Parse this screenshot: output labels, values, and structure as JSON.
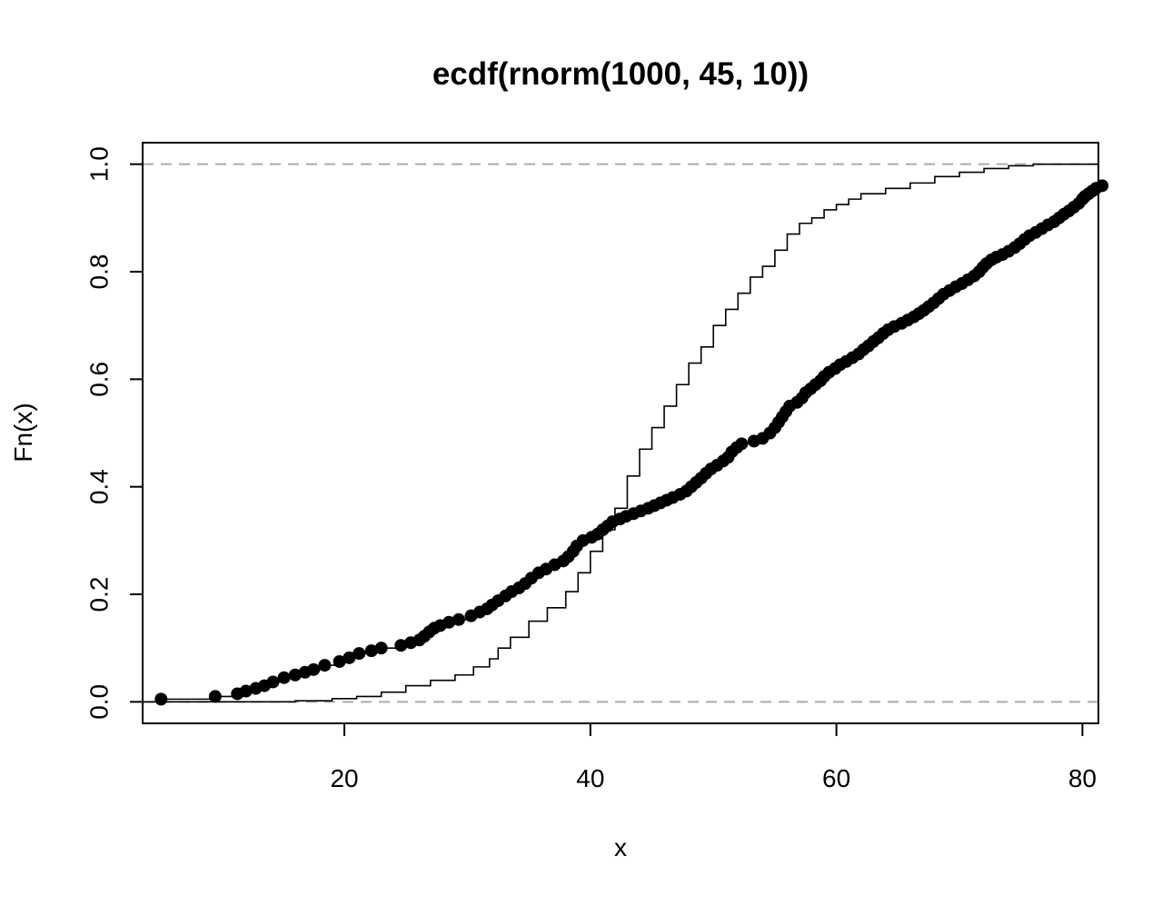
{
  "chart_data": {
    "type": "line",
    "title": "ecdf(rnorm(1000, 45, 10))",
    "xlabel": "x",
    "ylabel": "Fn(x)",
    "xlim": [
      3.6,
      81.3
    ],
    "ylim": [
      -0.04,
      1.04
    ],
    "x_ticks": [
      {
        "value": 20,
        "label": "20"
      },
      {
        "value": 40,
        "label": "40"
      },
      {
        "value": 60,
        "label": "60"
      },
      {
        "value": 80,
        "label": "80"
      }
    ],
    "y_ticks": [
      {
        "value": 0.0,
        "label": "0.0"
      },
      {
        "value": 0.2,
        "label": "0.2"
      },
      {
        "value": 0.4,
        "label": "0.4"
      },
      {
        "value": 0.6,
        "label": "0.6"
      },
      {
        "value": 0.8,
        "label": "0.8"
      },
      {
        "value": 1.0,
        "label": "1.0"
      }
    ],
    "reference_lines": [
      {
        "y": 0.0,
        "style": "dashed",
        "color": "#aaaaaa"
      },
      {
        "y": 1.0,
        "style": "dashed",
        "color": "#aaaaaa"
      }
    ],
    "series": [
      {
        "style": "step-with-points",
        "color": "#000000",
        "points": [
          [
            5.1,
            0.005
          ],
          [
            9.5,
            0.01
          ],
          [
            11.3,
            0.015
          ],
          [
            12.0,
            0.02
          ],
          [
            12.8,
            0.025
          ],
          [
            13.5,
            0.03
          ],
          [
            14.2,
            0.037
          ],
          [
            15.1,
            0.045
          ],
          [
            16.0,
            0.05
          ],
          [
            16.8,
            0.055
          ],
          [
            17.5,
            0.06
          ],
          [
            18.4,
            0.068
          ],
          [
            19.6,
            0.075
          ],
          [
            20.4,
            0.082
          ],
          [
            21.2,
            0.09
          ],
          [
            22.2,
            0.095
          ],
          [
            23.0,
            0.1
          ],
          [
            24.6,
            0.105
          ],
          [
            25.4,
            0.11
          ],
          [
            26.1,
            0.115
          ],
          [
            26.5,
            0.122
          ],
          [
            26.9,
            0.13
          ],
          [
            27.3,
            0.137
          ],
          [
            27.8,
            0.142
          ],
          [
            28.5,
            0.148
          ],
          [
            29.3,
            0.153
          ],
          [
            30.3,
            0.16
          ],
          [
            31.0,
            0.167
          ],
          [
            31.6,
            0.173
          ],
          [
            32.0,
            0.18
          ],
          [
            32.5,
            0.188
          ],
          [
            33.1,
            0.197
          ],
          [
            33.6,
            0.205
          ],
          [
            34.2,
            0.212
          ],
          [
            34.7,
            0.22
          ],
          [
            35.2,
            0.23
          ],
          [
            35.8,
            0.24
          ],
          [
            36.4,
            0.247
          ],
          [
            37.1,
            0.255
          ],
          [
            37.8,
            0.262
          ],
          [
            38.2,
            0.27
          ],
          [
            38.6,
            0.28
          ],
          [
            38.9,
            0.29
          ],
          [
            39.4,
            0.3
          ],
          [
            40.1,
            0.306
          ],
          [
            40.6,
            0.312
          ],
          [
            41.0,
            0.32
          ],
          [
            41.4,
            0.327
          ],
          [
            41.8,
            0.335
          ],
          [
            42.4,
            0.34
          ],
          [
            42.9,
            0.345
          ],
          [
            43.5,
            0.35
          ],
          [
            44.1,
            0.355
          ],
          [
            44.7,
            0.36
          ],
          [
            45.2,
            0.365
          ],
          [
            45.7,
            0.37
          ],
          [
            46.2,
            0.375
          ],
          [
            46.7,
            0.38
          ],
          [
            47.3,
            0.386
          ],
          [
            47.8,
            0.392
          ],
          [
            48.2,
            0.4
          ],
          [
            48.6,
            0.408
          ],
          [
            49.0,
            0.416
          ],
          [
            49.4,
            0.425
          ],
          [
            49.8,
            0.433
          ],
          [
            50.3,
            0.44
          ],
          [
            50.8,
            0.448
          ],
          [
            51.2,
            0.455
          ],
          [
            51.5,
            0.465
          ],
          [
            51.9,
            0.473
          ],
          [
            52.3,
            0.48
          ],
          [
            53.3,
            0.485
          ],
          [
            54.0,
            0.49
          ],
          [
            54.6,
            0.5
          ],
          [
            55.0,
            0.51
          ],
          [
            55.3,
            0.52
          ],
          [
            55.6,
            0.53
          ],
          [
            55.9,
            0.54
          ],
          [
            56.2,
            0.55
          ],
          [
            56.8,
            0.557
          ],
          [
            57.2,
            0.565
          ],
          [
            57.5,
            0.575
          ],
          [
            57.9,
            0.582
          ],
          [
            58.3,
            0.59
          ],
          [
            58.7,
            0.597
          ],
          [
            59.0,
            0.605
          ],
          [
            59.4,
            0.613
          ],
          [
            59.9,
            0.62
          ],
          [
            60.3,
            0.627
          ],
          [
            60.8,
            0.633
          ],
          [
            61.3,
            0.64
          ],
          [
            61.8,
            0.647
          ],
          [
            62.2,
            0.655
          ],
          [
            62.6,
            0.662
          ],
          [
            63.0,
            0.67
          ],
          [
            63.4,
            0.677
          ],
          [
            63.8,
            0.685
          ],
          [
            64.2,
            0.692
          ],
          [
            64.7,
            0.698
          ],
          [
            65.3,
            0.704
          ],
          [
            65.8,
            0.71
          ],
          [
            66.3,
            0.716
          ],
          [
            66.7,
            0.722
          ],
          [
            67.1,
            0.728
          ],
          [
            67.5,
            0.735
          ],
          [
            67.9,
            0.742
          ],
          [
            68.3,
            0.75
          ],
          [
            68.7,
            0.758
          ],
          [
            69.2,
            0.765
          ],
          [
            69.7,
            0.772
          ],
          [
            70.2,
            0.778
          ],
          [
            70.7,
            0.785
          ],
          [
            71.2,
            0.792
          ],
          [
            71.6,
            0.8
          ],
          [
            71.9,
            0.808
          ],
          [
            72.2,
            0.815
          ],
          [
            72.6,
            0.822
          ],
          [
            73.0,
            0.827
          ],
          [
            73.5,
            0.832
          ],
          [
            74.0,
            0.838
          ],
          [
            74.5,
            0.845
          ],
          [
            74.9,
            0.852
          ],
          [
            75.3,
            0.86
          ],
          [
            75.7,
            0.867
          ],
          [
            76.2,
            0.873
          ],
          [
            76.7,
            0.88
          ],
          [
            77.2,
            0.887
          ],
          [
            77.7,
            0.893
          ],
          [
            78.1,
            0.9
          ],
          [
            78.5,
            0.907
          ],
          [
            78.9,
            0.913
          ],
          [
            79.3,
            0.92
          ],
          [
            79.7,
            0.927
          ],
          [
            80.0,
            0.935
          ],
          [
            80.2,
            0.94
          ],
          [
            80.5,
            0.945
          ],
          [
            80.8,
            0.95
          ],
          [
            81.1,
            0.955
          ],
          [
            81.6,
            0.96
          ],
          [
            82.0,
            0.965
          ],
          [
            82.4,
            0.97
          ]
        ]
      },
      {
        "style": "step",
        "color": "#000000",
        "points": [
          [
            3.6,
            0.0
          ],
          [
            12.0,
            0.0
          ],
          [
            16.0,
            0.002
          ],
          [
            19.0,
            0.006
          ],
          [
            21.0,
            0.01
          ],
          [
            23.0,
            0.018
          ],
          [
            25.0,
            0.03
          ],
          [
            27.0,
            0.04
          ],
          [
            29.0,
            0.05
          ],
          [
            30.5,
            0.065
          ],
          [
            31.8,
            0.08
          ],
          [
            32.5,
            0.1
          ],
          [
            33.5,
            0.12
          ],
          [
            35.0,
            0.15
          ],
          [
            36.5,
            0.175
          ],
          [
            38.0,
            0.205
          ],
          [
            39.0,
            0.24
          ],
          [
            40.0,
            0.28
          ],
          [
            41.0,
            0.32
          ],
          [
            42.0,
            0.36
          ],
          [
            43.0,
            0.42
          ],
          [
            44.0,
            0.47
          ],
          [
            45.0,
            0.51
          ],
          [
            46.0,
            0.55
          ],
          [
            47.0,
            0.59
          ],
          [
            48.0,
            0.63
          ],
          [
            49.0,
            0.66
          ],
          [
            50.0,
            0.7
          ],
          [
            51.0,
            0.73
          ],
          [
            52.0,
            0.76
          ],
          [
            53.0,
            0.79
          ],
          [
            54.0,
            0.81
          ],
          [
            55.0,
            0.84
          ],
          [
            56.0,
            0.87
          ],
          [
            57.0,
            0.89
          ],
          [
            58.0,
            0.9
          ],
          [
            59.0,
            0.915
          ],
          [
            60.0,
            0.925
          ],
          [
            61.0,
            0.935
          ],
          [
            62.0,
            0.945
          ],
          [
            64.0,
            0.955
          ],
          [
            66.0,
            0.965
          ],
          [
            68.0,
            0.977
          ],
          [
            70.0,
            0.985
          ],
          [
            72.0,
            0.992
          ],
          [
            74.0,
            0.997
          ],
          [
            76.0,
            1.0
          ],
          [
            81.3,
            1.0
          ]
        ]
      }
    ],
    "grid": false,
    "legend": "none"
  }
}
